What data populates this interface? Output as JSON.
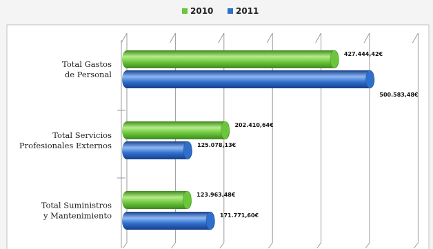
{
  "chart_data": {
    "type": "bar",
    "orientation": "horizontal",
    "style": "3d-cylinder",
    "categories": [
      [
        "Total Gastos",
        "de Personal"
      ],
      [
        "Total Servicios",
        "Profesionales Externos"
      ],
      [
        "Total Suministros",
        "y Mantenimiento"
      ]
    ],
    "series": [
      {
        "name": "2010",
        "color": "#6cc63c",
        "values": [
          427444.42,
          202410.64,
          123963.48
        ],
        "labels": [
          "427.444,42€",
          "202.410,64€",
          "123.963,48€"
        ]
      },
      {
        "name": "2011",
        "color": "#2f6fcc",
        "values": [
          500583.48,
          125078.13,
          171771.6
        ],
        "labels": [
          "500.583,48€",
          "125.078,13€",
          "171.771,60€"
        ]
      }
    ],
    "xlim": [
      0,
      600000
    ],
    "grid": true,
    "legend": "top-center"
  }
}
